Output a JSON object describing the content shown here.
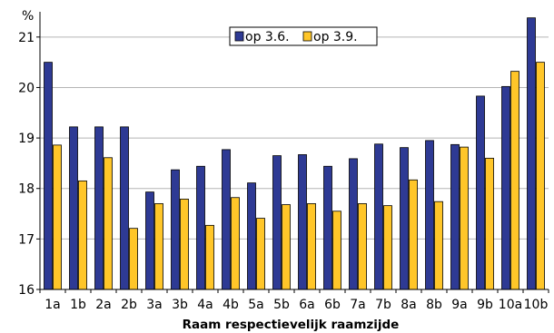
{
  "chart_data": {
    "type": "bar",
    "unit_label": "%",
    "xlabel": "Raam respectievelijk raamzijde",
    "ylim": [
      16,
      21.5
    ],
    "yticks": [
      16,
      17,
      18,
      19,
      20,
      21
    ],
    "grid": true,
    "legend_position": "top-center",
    "categories": [
      "1a",
      "1b",
      "2a",
      "2b",
      "3a",
      "3b",
      "4a",
      "4b",
      "5a",
      "5b",
      "6a",
      "6b",
      "7a",
      "7b",
      "8a",
      "8b",
      "9a",
      "9b",
      "10a",
      "10b"
    ],
    "series": [
      {
        "name": "op 3.6.",
        "color": "#2E3A94",
        "values": [
          20.5,
          19.22,
          19.22,
          19.22,
          17.93,
          18.37,
          18.44,
          18.77,
          18.11,
          18.65,
          18.67,
          18.44,
          18.59,
          18.88,
          18.81,
          18.95,
          18.87,
          19.83,
          20.02,
          21.38
        ]
      },
      {
        "name": "op 3.9.",
        "color": "#FFC629",
        "values": [
          18.86,
          18.15,
          18.61,
          17.21,
          17.7,
          17.79,
          17.27,
          17.82,
          17.41,
          17.68,
          17.7,
          17.55,
          17.7,
          17.66,
          18.17,
          17.74,
          18.82,
          18.6,
          20.32,
          20.5
        ]
      }
    ]
  }
}
